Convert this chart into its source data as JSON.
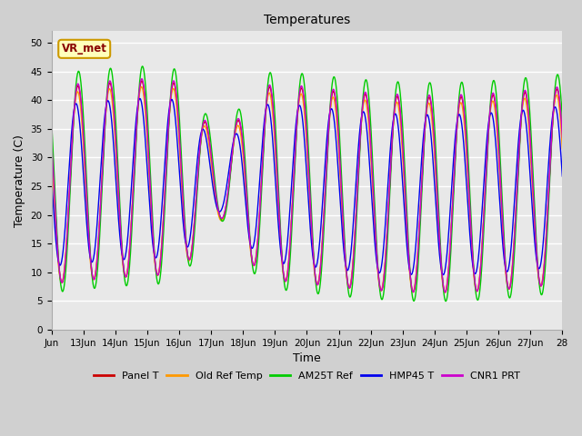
{
  "title": "Temperatures",
  "xlabel": "Time",
  "ylabel": "Temperature (C)",
  "ylim": [
    0,
    52
  ],
  "yticks": [
    0,
    5,
    10,
    15,
    20,
    25,
    30,
    35,
    40,
    45,
    50
  ],
  "fig_facecolor": "#d0d0d0",
  "ax_facecolor": "#e8e8e8",
  "annotation_text": "VR_met",
  "series_names": [
    "Panel T",
    "Old Ref Temp",
    "AM25T Ref",
    "HMP45 T",
    "CNR1 PRT"
  ],
  "series_colors": [
    "#cc0000",
    "#ff9900",
    "#00cc00",
    "#0000ee",
    "#cc00cc"
  ],
  "series_lw": [
    1.0,
    1.0,
    1.0,
    1.0,
    1.0
  ],
  "x_start": 12,
  "x_end": 28,
  "x_tick_days": [
    12,
    13,
    14,
    15,
    16,
    17,
    18,
    19,
    20,
    21,
    22,
    23,
    24,
    25,
    26,
    27,
    28
  ],
  "x_tick_labels": [
    "Jun",
    "13Jun",
    "14Jun",
    "15Jun",
    "16Jun",
    "17Jun",
    "18Jun",
    "19Jun",
    "20Jun",
    "21Jun",
    "22Jun",
    "23Jun",
    "24Jun",
    "25Jun",
    "26Jun",
    "27Jun",
    "28"
  ]
}
